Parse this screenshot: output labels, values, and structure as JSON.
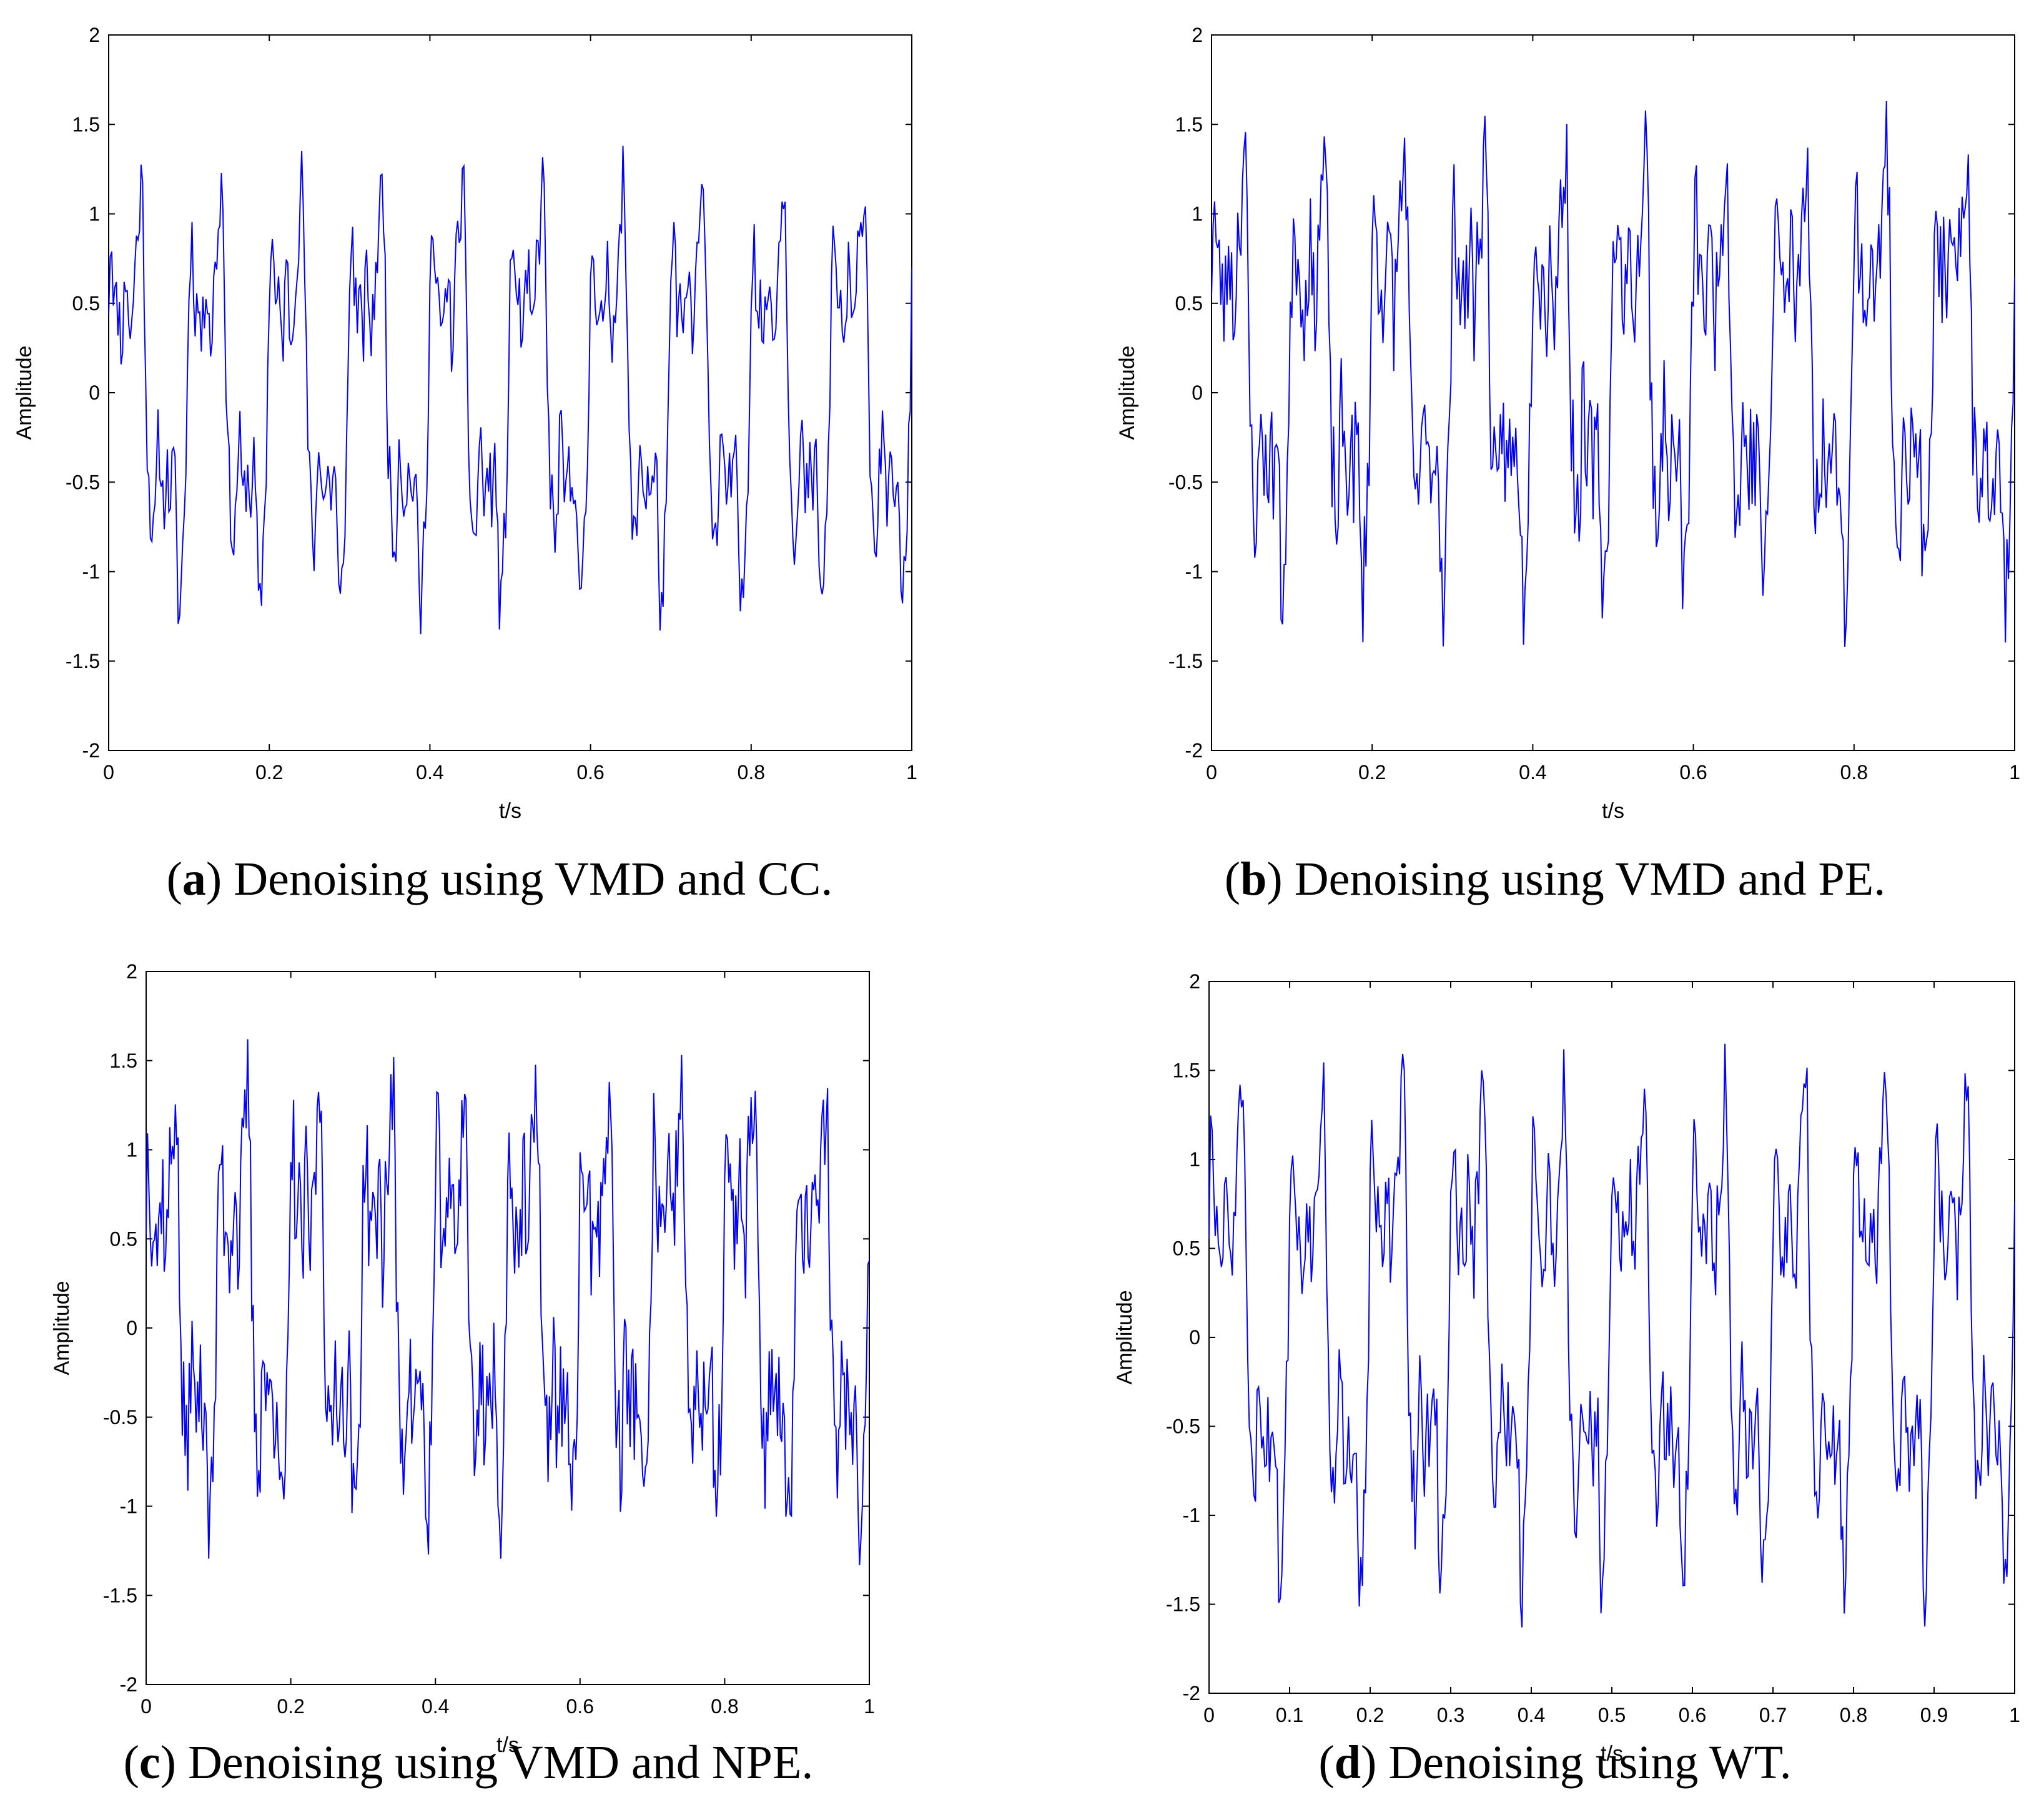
{
  "chart_data": [
    {
      "type": "line",
      "id": "a",
      "xlabel": "t/s",
      "ylabel": "Amplitude",
      "xlim": [
        0,
        1
      ],
      "ylim": [
        -2,
        2
      ],
      "xticks": [
        "0",
        "0.2",
        "0.4",
        "0.6",
        "0.8",
        "1"
      ],
      "yticks": [
        "-2",
        "-1.5",
        "-1",
        "-0.5",
        "0",
        "0.5",
        "1",
        "1.5",
        "2"
      ],
      "line_color": "#0000ff",
      "seed": 11,
      "noise": 0.2,
      "series": [
        {
          "name": "VMD+CC denoised signal",
          "period": 0.1,
          "amplitude_range": [
            -1.35,
            1.38
          ]
        }
      ],
      "caption_letter": "a",
      "caption_text": "Denoising using VMD and CC."
    },
    {
      "type": "line",
      "id": "b",
      "xlabel": "t/s",
      "ylabel": "Amplitude",
      "xlim": [
        0,
        1
      ],
      "ylim": [
        -2,
        2
      ],
      "xticks": [
        "0",
        "0.2",
        "0.4",
        "0.6",
        "0.8",
        "1"
      ],
      "yticks": [
        "-2",
        "-1.5",
        "-1",
        "-0.5",
        "0",
        "0.5",
        "1",
        "1.5",
        "2"
      ],
      "line_color": "#0000ff",
      "seed": 23,
      "noise": 0.32,
      "series": [
        {
          "name": "VMD+PE denoised signal",
          "period": 0.1,
          "amplitude_range": [
            -1.42,
            1.63
          ]
        }
      ],
      "caption_letter": "b",
      "caption_text": "Denoising using VMD and PE."
    },
    {
      "type": "line",
      "id": "c",
      "xlabel": "t/s",
      "ylabel": "Amplitude",
      "xlim": [
        0,
        1
      ],
      "ylim": [
        -2,
        2
      ],
      "xticks": [
        "0",
        "0.2",
        "0.4",
        "0.6",
        "0.8",
        "1"
      ],
      "yticks": [
        "-2",
        "-1.5",
        "-1",
        "-0.5",
        "0",
        "0.5",
        "1",
        "1.5",
        "2"
      ],
      "line_color": "#0000ff",
      "seed": 37,
      "noise": 0.32,
      "series": [
        {
          "name": "VMD+NPE denoised signal",
          "period": 0.1,
          "amplitude_range": [
            -1.33,
            1.62
          ]
        }
      ],
      "caption_letter": "c",
      "caption_text": "Denoising using VMD and NPE."
    },
    {
      "type": "line",
      "id": "d",
      "xlabel": "t/s",
      "ylabel": "Amplitude",
      "xlim": [
        0,
        1
      ],
      "ylim": [
        -2,
        2
      ],
      "xticks": [
        "0",
        "0.1",
        "0.2",
        "0.3",
        "0.4",
        "0.5",
        "0.6",
        "0.7",
        "0.8",
        "0.9",
        "1"
      ],
      "yticks": [
        "-2",
        "-1.5",
        "-1",
        "-0.5",
        "0",
        "0.5",
        "1",
        "1.5",
        "2"
      ],
      "line_color": "#0000ff",
      "seed": 51,
      "noise": 0.22,
      "series": [
        {
          "name": "WT denoised signal",
          "period": 0.1,
          "amplitude_range": [
            -1.63,
            1.65
          ]
        }
      ],
      "caption_letter": "d",
      "caption_text": "Denoising using WT."
    }
  ]
}
